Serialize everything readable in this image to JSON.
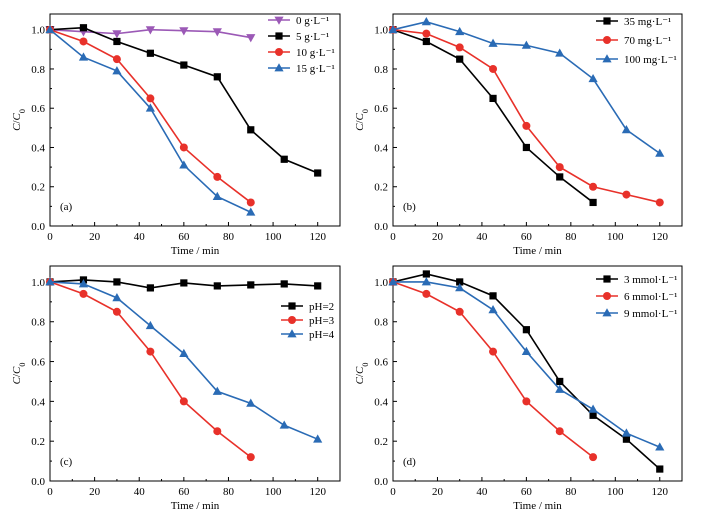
{
  "chart_data": [
    {
      "type": "line",
      "panel_label": "(a)",
      "xlabel": "Time / min",
      "ylabel": "C/C0",
      "xlim": [
        0,
        130
      ],
      "ylim": [
        0,
        1.08
      ],
      "xticks": [
        0,
        20,
        40,
        60,
        80,
        100,
        120
      ],
      "yticks": [
        0,
        0.2,
        0.4,
        0.6,
        0.8,
        1.0
      ],
      "xtick_labels": [
        "0",
        "20",
        "40",
        "60",
        "80",
        "100",
        "120"
      ],
      "ytick_labels": [
        "0.0",
        "0.2",
        "0.4",
        "0.6",
        "0.8",
        "1.0"
      ],
      "legend_position": "top-right",
      "series": [
        {
          "name": "0 g·L⁻¹",
          "color": "#9b59b6",
          "marker": "triangle-down",
          "x": [
            0,
            15,
            30,
            45,
            60,
            75,
            90
          ],
          "y": [
            1.0,
            0.99,
            0.98,
            1.0,
            0.995,
            0.99,
            0.96
          ]
        },
        {
          "name": "5 g·L⁻¹",
          "color": "#000000",
          "marker": "square",
          "x": [
            0,
            15,
            30,
            45,
            60,
            75,
            90,
            105,
            120
          ],
          "y": [
            1.0,
            1.01,
            0.94,
            0.88,
            0.82,
            0.76,
            0.49,
            0.34,
            0.27
          ]
        },
        {
          "name": "10 g·L⁻¹",
          "color": "#e8312a",
          "marker": "circle",
          "x": [
            0,
            15,
            30,
            45,
            60,
            75,
            90
          ],
          "y": [
            1.0,
            0.94,
            0.85,
            0.65,
            0.4,
            0.25,
            0.12
          ]
        },
        {
          "name": "15 g·L⁻¹",
          "color": "#2a6bb5",
          "marker": "triangle",
          "x": [
            0,
            15,
            30,
            45,
            60,
            75,
            90
          ],
          "y": [
            1.0,
            0.86,
            0.79,
            0.6,
            0.31,
            0.15,
            0.07
          ]
        }
      ]
    },
    {
      "type": "line",
      "panel_label": "(b)",
      "xlabel": "Time / min",
      "ylabel": "C/C0",
      "xlim": [
        0,
        130
      ],
      "ylim": [
        0,
        1.08
      ],
      "xticks": [
        0,
        20,
        40,
        60,
        80,
        100,
        120
      ],
      "yticks": [
        0,
        0.2,
        0.4,
        0.6,
        0.8,
        1.0
      ],
      "xtick_labels": [
        "0",
        "20",
        "40",
        "60",
        "80",
        "100",
        "120"
      ],
      "ytick_labels": [
        "0.0",
        "0.2",
        "0.4",
        "0.6",
        "0.8",
        "1.0"
      ],
      "legend_position": "top-right",
      "series": [
        {
          "name": "35 mg·L⁻¹",
          "color": "#000000",
          "marker": "square",
          "x": [
            0,
            15,
            30,
            45,
            60,
            75,
            90
          ],
          "y": [
            1.0,
            0.94,
            0.85,
            0.65,
            0.4,
            0.25,
            0.12
          ]
        },
        {
          "name": "70 mg·L⁻¹",
          "color": "#e8312a",
          "marker": "circle",
          "x": [
            0,
            15,
            30,
            45,
            60,
            75,
            90,
            105,
            120
          ],
          "y": [
            1.0,
            0.98,
            0.91,
            0.8,
            0.51,
            0.3,
            0.2,
            0.16,
            0.12
          ]
        },
        {
          "name": "100 mg·L⁻¹",
          "color": "#2a6bb5",
          "marker": "triangle",
          "x": [
            0,
            15,
            30,
            45,
            60,
            75,
            90,
            105,
            120
          ],
          "y": [
            1.0,
            1.04,
            0.99,
            0.93,
            0.92,
            0.88,
            0.75,
            0.49,
            0.37
          ]
        }
      ]
    },
    {
      "type": "line",
      "panel_label": "(c)",
      "xlabel": "Time / min",
      "ylabel": "C/C0",
      "xlim": [
        0,
        130
      ],
      "ylim": [
        0,
        1.08
      ],
      "xticks": [
        0,
        20,
        40,
        60,
        80,
        100,
        120
      ],
      "yticks": [
        0,
        0.2,
        0.4,
        0.6,
        0.8,
        1.0
      ],
      "xtick_labels": [
        "0",
        "20",
        "40",
        "60",
        "80",
        "100",
        "120"
      ],
      "ytick_labels": [
        "0.0",
        "0.2",
        "0.4",
        "0.6",
        "0.8",
        "1.0"
      ],
      "legend_position": "right",
      "series": [
        {
          "name": "pH=2",
          "color": "#000000",
          "marker": "square",
          "x": [
            0,
            15,
            30,
            45,
            60,
            75,
            90,
            105,
            120
          ],
          "y": [
            1.0,
            1.01,
            1.0,
            0.97,
            0.995,
            0.98,
            0.985,
            0.99,
            0.98
          ]
        },
        {
          "name": "pH=3",
          "color": "#e8312a",
          "marker": "circle",
          "x": [
            0,
            15,
            30,
            45,
            60,
            75,
            90
          ],
          "y": [
            1.0,
            0.94,
            0.85,
            0.65,
            0.4,
            0.25,
            0.12
          ]
        },
        {
          "name": "pH=4",
          "color": "#2a6bb5",
          "marker": "triangle",
          "x": [
            0,
            15,
            30,
            45,
            60,
            75,
            90,
            105,
            120
          ],
          "y": [
            1.0,
            0.99,
            0.92,
            0.78,
            0.64,
            0.45,
            0.39,
            0.28,
            0.21
          ]
        }
      ]
    },
    {
      "type": "line",
      "panel_label": "(d)",
      "xlabel": "Time / min",
      "ylabel": "C/C0",
      "xlim": [
        0,
        130
      ],
      "ylim": [
        0,
        1.08
      ],
      "xticks": [
        0,
        20,
        40,
        60,
        80,
        100,
        120
      ],
      "yticks": [
        0,
        0.2,
        0.4,
        0.6,
        0.8,
        1.0
      ],
      "xtick_labels": [
        "0",
        "20",
        "40",
        "60",
        "80",
        "100",
        "120"
      ],
      "ytick_labels": [
        "0.0",
        "0.2",
        "0.4",
        "0.6",
        "0.8",
        "1.0"
      ],
      "legend_position": "top-right",
      "series": [
        {
          "name": "3 mmol·L⁻¹",
          "color": "#000000",
          "marker": "square",
          "x": [
            0,
            15,
            30,
            45,
            60,
            75,
            90,
            105,
            120
          ],
          "y": [
            1.0,
            1.04,
            1.0,
            0.93,
            0.76,
            0.5,
            0.33,
            0.21,
            0.06
          ]
        },
        {
          "name": "6 mmol·L⁻¹",
          "color": "#e8312a",
          "marker": "circle",
          "x": [
            0,
            15,
            30,
            45,
            60,
            75,
            90
          ],
          "y": [
            1.0,
            0.94,
            0.85,
            0.65,
            0.4,
            0.25,
            0.12
          ]
        },
        {
          "name": "9 mmol·L⁻¹",
          "color": "#2a6bb5",
          "marker": "triangle",
          "x": [
            0,
            15,
            30,
            45,
            60,
            75,
            90,
            105,
            120
          ],
          "y": [
            1.0,
            1.0,
            0.97,
            0.86,
            0.65,
            0.46,
            0.36,
            0.24,
            0.17
          ]
        }
      ]
    }
  ]
}
